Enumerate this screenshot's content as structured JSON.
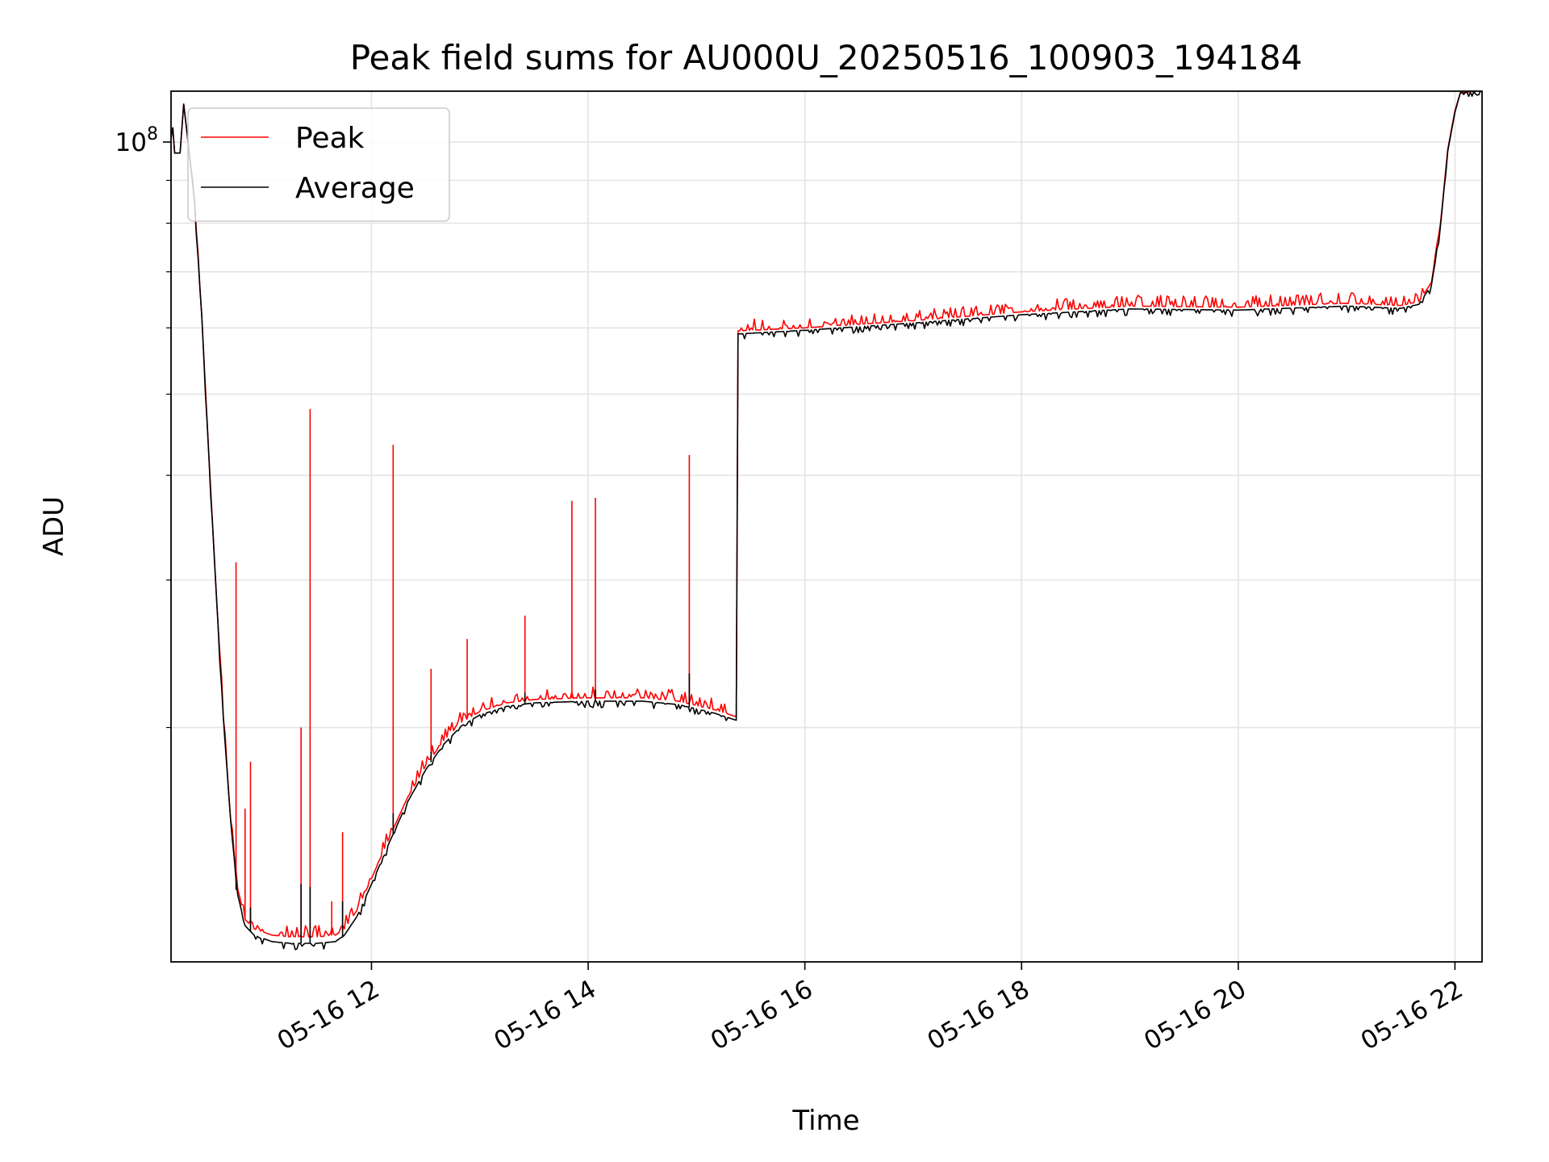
{
  "chart_data": {
    "type": "line",
    "title": "Peak field sums for AU000U_20250516_100903_194184",
    "xlabel": "Time",
    "ylabel": "ADU",
    "x_range": [
      "2025-05-16 10:09",
      "2025-05-16 22:15"
    ],
    "y_scale": "log",
    "ylim": [
      10500000,
      115000000
    ],
    "grid": true,
    "legend_position": "top-left",
    "x_ticks": [
      {
        "time": "2025-05-16 12:00",
        "label": "05-16 12"
      },
      {
        "time": "2025-05-16 14:00",
        "label": "05-16 14"
      },
      {
        "time": "2025-05-16 16:00",
        "label": "05-16 16"
      },
      {
        "time": "2025-05-16 18:00",
        "label": "05-16 18"
      },
      {
        "time": "2025-05-16 20:00",
        "label": "05-16 20"
      },
      {
        "time": "2025-05-16 22:00",
        "label": "05-16 22"
      }
    ],
    "y_ticks": [
      {
        "value": 100000000,
        "label_base": "10",
        "label_exp": "8"
      }
    ],
    "series": [
      {
        "name": "Peak",
        "color": "#ff0000",
        "points": [
          [
            "2025-05-16 10:09",
            101000000
          ],
          [
            "2025-05-16 10:10",
            104000000
          ],
          [
            "2025-05-16 10:11",
            97000000
          ],
          [
            "2025-05-16 10:14",
            97000000
          ],
          [
            "2025-05-16 10:16",
            111000000
          ],
          [
            "2025-05-16 10:18",
            102000000
          ],
          [
            "2025-05-16 10:22",
            85000000
          ],
          [
            "2025-05-16 10:26",
            62000000
          ],
          [
            "2025-05-16 10:30",
            42000000
          ],
          [
            "2025-05-16 10:34",
            29000000
          ],
          [
            "2025-05-16 10:38",
            20500000
          ],
          [
            "2025-05-16 10:42",
            15500000
          ],
          [
            "2025-05-16 10:46",
            12800000
          ],
          [
            "2025-05-16 10:50",
            11800000
          ],
          [
            "2025-05-16 10:55",
            11500000
          ],
          [
            "2025-05-16 11:05",
            11300000
          ],
          [
            "2025-05-16 11:15",
            11250000
          ],
          [
            "2025-05-16 11:30",
            11250000
          ],
          [
            "2025-05-16 11:40",
            11300000
          ],
          [
            "2025-05-16 11:45",
            11500000
          ],
          [
            "2025-05-16 11:52",
            12100000
          ],
          [
            "2025-05-16 12:00",
            13200000
          ],
          [
            "2025-05-16 12:10",
            14800000
          ],
          [
            "2025-05-16 12:20",
            16500000
          ],
          [
            "2025-05-16 12:30",
            18000000
          ],
          [
            "2025-05-16 12:40",
            19300000
          ],
          [
            "2025-05-16 12:50",
            20300000
          ],
          [
            "2025-05-16 13:00",
            20900000
          ],
          [
            "2025-05-16 13:15",
            21400000
          ],
          [
            "2025-05-16 13:30",
            21600000
          ],
          [
            "2025-05-16 14:00",
            21700000
          ],
          [
            "2025-05-16 14:30",
            21700000
          ],
          [
            "2025-05-16 14:50",
            21500000
          ],
          [
            "2025-05-16 15:10",
            21000000
          ],
          [
            "2025-05-16 15:22",
            20600000
          ],
          [
            "2025-05-16 15:23",
            59500000
          ],
          [
            "2025-05-16 16:00",
            60000000
          ],
          [
            "2025-05-16 17:00",
            61200000
          ],
          [
            "2025-05-16 18:00",
            62700000
          ],
          [
            "2025-05-16 19:00",
            63700000
          ],
          [
            "2025-05-16 20:00",
            63500000
          ],
          [
            "2025-05-16 21:00",
            64200000
          ],
          [
            "2025-05-16 21:30",
            63800000
          ],
          [
            "2025-05-16 21:40",
            64500000
          ],
          [
            "2025-05-16 21:47",
            68000000
          ],
          [
            "2025-05-16 21:52",
            80000000
          ],
          [
            "2025-05-16 21:56",
            98000000
          ],
          [
            "2025-05-16 22:00",
            109000000
          ],
          [
            "2025-05-16 22:03",
            114500000
          ],
          [
            "2025-05-16 22:15",
            115000000
          ]
        ],
        "spikes": [
          [
            "2025-05-16 10:45",
            31500000
          ],
          [
            "2025-05-16 10:50",
            16000000
          ],
          [
            "2025-05-16 10:53",
            18200000
          ],
          [
            "2025-05-16 11:21",
            20000000
          ],
          [
            "2025-05-16 11:26",
            48000000
          ],
          [
            "2025-05-16 11:38",
            12400000
          ],
          [
            "2025-05-16 11:44",
            15000000
          ],
          [
            "2025-05-16 12:12",
            43500000
          ],
          [
            "2025-05-16 12:33",
            23500000
          ],
          [
            "2025-05-16 12:53",
            25500000
          ],
          [
            "2025-05-16 13:25",
            27200000
          ],
          [
            "2025-05-16 13:51",
            37300000
          ],
          [
            "2025-05-16 14:04",
            37600000
          ],
          [
            "2025-05-16 14:56",
            42300000
          ]
        ]
      },
      {
        "name": "Average",
        "color": "#000000",
        "points": [
          [
            "2025-05-16 10:09",
            101000000
          ],
          [
            "2025-05-16 10:10",
            104000000
          ],
          [
            "2025-05-16 10:11",
            97000000
          ],
          [
            "2025-05-16 10:14",
            97000000
          ],
          [
            "2025-05-16 10:16",
            111000000
          ],
          [
            "2025-05-16 10:18",
            102000000
          ],
          [
            "2025-05-16 10:22",
            85000000
          ],
          [
            "2025-05-16 10:26",
            62000000
          ],
          [
            "2025-05-16 10:30",
            42000000
          ],
          [
            "2025-05-16 10:34",
            29000000
          ],
          [
            "2025-05-16 10:38",
            20500000
          ],
          [
            "2025-05-16 10:42",
            15500000
          ],
          [
            "2025-05-16 10:46",
            12600000
          ],
          [
            "2025-05-16 10:50",
            11600000
          ],
          [
            "2025-05-16 10:55",
            11300000
          ],
          [
            "2025-05-16 11:05",
            11100000
          ],
          [
            "2025-05-16 11:15",
            11050000
          ],
          [
            "2025-05-16 11:30",
            11050000
          ],
          [
            "2025-05-16 11:40",
            11100000
          ],
          [
            "2025-05-16 11:45",
            11300000
          ],
          [
            "2025-05-16 11:52",
            11900000
          ],
          [
            "2025-05-16 12:00",
            13000000
          ],
          [
            "2025-05-16 12:10",
            14600000
          ],
          [
            "2025-05-16 12:20",
            16300000
          ],
          [
            "2025-05-16 12:30",
            17800000
          ],
          [
            "2025-05-16 12:40",
            19100000
          ],
          [
            "2025-05-16 12:50",
            20100000
          ],
          [
            "2025-05-16 13:00",
            20700000
          ],
          [
            "2025-05-16 13:15",
            21200000
          ],
          [
            "2025-05-16 13:30",
            21400000
          ],
          [
            "2025-05-16 14:00",
            21500000
          ],
          [
            "2025-05-16 14:30",
            21500000
          ],
          [
            "2025-05-16 14:50",
            21300000
          ],
          [
            "2025-05-16 15:10",
            20800000
          ],
          [
            "2025-05-16 15:22",
            20400000
          ],
          [
            "2025-05-16 15:23",
            59000000
          ],
          [
            "2025-05-16 16:00",
            59600000
          ],
          [
            "2025-05-16 17:00",
            60800000
          ],
          [
            "2025-05-16 18:00",
            62200000
          ],
          [
            "2025-05-16 19:00",
            63200000
          ],
          [
            "2025-05-16 20:00",
            63000000
          ],
          [
            "2025-05-16 21:00",
            63700000
          ],
          [
            "2025-05-16 21:30",
            63300000
          ],
          [
            "2025-05-16 21:40",
            64000000
          ],
          [
            "2025-05-16 21:47",
            67500000
          ],
          [
            "2025-05-16 21:52",
            79500000
          ],
          [
            "2025-05-16 21:56",
            97500000
          ],
          [
            "2025-05-16 22:00",
            108500000
          ],
          [
            "2025-05-16 22:03",
            114500000
          ],
          [
            "2025-05-16 22:15",
            115000000
          ]
        ],
        "spikes": [
          [
            "2025-05-16 10:45",
            12800000
          ],
          [
            "2025-05-16 10:53",
            12200000
          ],
          [
            "2025-05-16 11:21",
            13000000
          ],
          [
            "2025-05-16 11:26",
            12900000
          ],
          [
            "2025-05-16 11:44",
            12400000
          ],
          [
            "2025-05-16 12:12",
            15800000
          ],
          [
            "2025-05-16 12:33",
            18700000
          ],
          [
            "2025-05-16 13:25",
            22000000
          ],
          [
            "2025-05-16 14:04",
            22200000
          ],
          [
            "2025-05-16 14:56",
            23200000
          ]
        ]
      }
    ]
  }
}
